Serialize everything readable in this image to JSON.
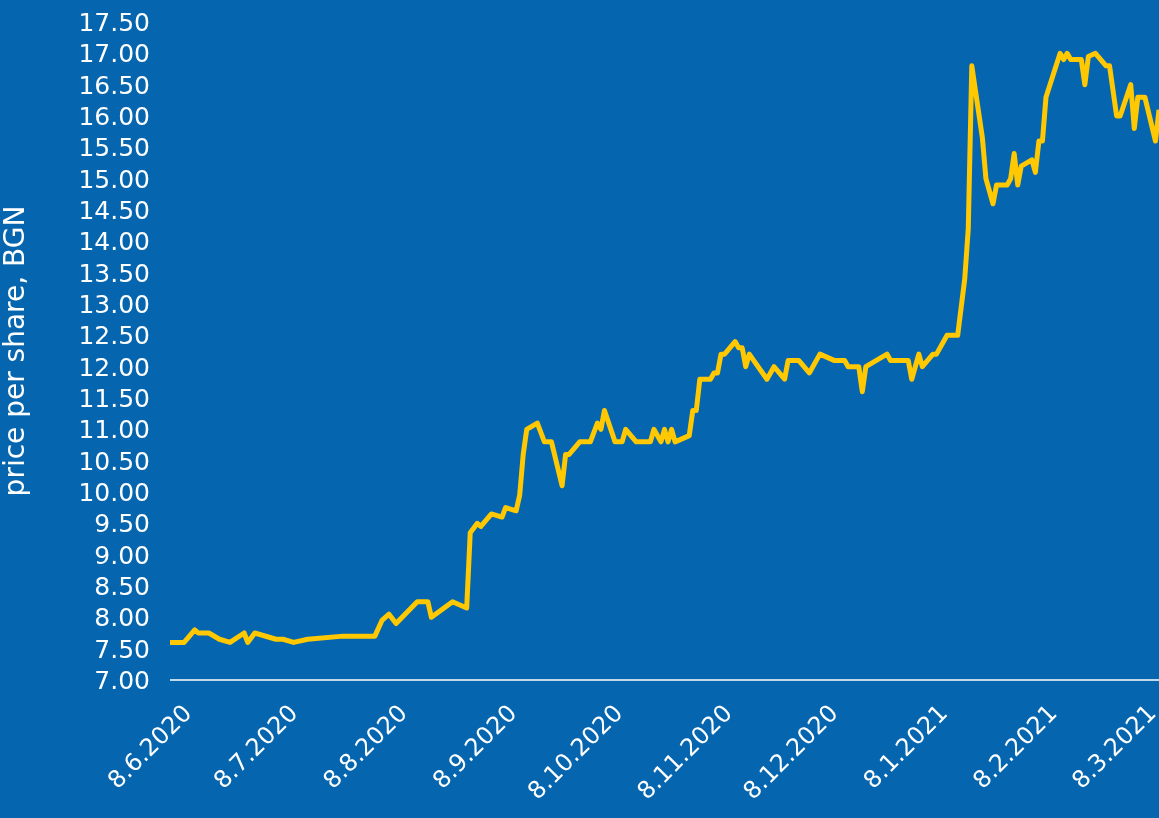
{
  "chart_data": {
    "type": "line",
    "ylabel": "price per share, BGN",
    "xlim": [
      "2020-06-05",
      "2021-03-12"
    ],
    "xticks": [
      {
        "value": "2020-06-08",
        "label": "8.6.2020"
      },
      {
        "value": "2020-07-08",
        "label": "8.7.2020"
      },
      {
        "value": "2020-08-08",
        "label": "8.8.2020"
      },
      {
        "value": "2020-09-08",
        "label": "8.9.2020"
      },
      {
        "value": "2020-10-08",
        "label": "8.10.2020"
      },
      {
        "value": "2020-11-08",
        "label": "8.11.2020"
      },
      {
        "value": "2020-12-08",
        "label": "8.12.2020"
      },
      {
        "value": "2021-01-08",
        "label": "8.1.2021"
      },
      {
        "value": "2021-02-08",
        "label": "8.2.2021"
      },
      {
        "value": "2021-03-08",
        "label": "8.3.2021"
      }
    ],
    "ylim": [
      7,
      17.5
    ],
    "yticks": [
      {
        "value": 7,
        "label": "7.00"
      },
      {
        "value": 7.5,
        "label": "7.50"
      },
      {
        "value": 8,
        "label": "8.00"
      },
      {
        "value": 8.5,
        "label": "8.50"
      },
      {
        "value": 9,
        "label": "9.00"
      },
      {
        "value": 9.5,
        "label": "9.50"
      },
      {
        "value": 10,
        "label": "10.00"
      },
      {
        "value": 10.5,
        "label": "10.50"
      },
      {
        "value": 11,
        "label": "11.00"
      },
      {
        "value": 11.5,
        "label": "11.50"
      },
      {
        "value": 12,
        "label": "12.00"
      },
      {
        "value": 12.5,
        "label": "12.50"
      },
      {
        "value": 13,
        "label": "13.00"
      },
      {
        "value": 13.5,
        "label": "13.50"
      },
      {
        "value": 14,
        "label": "14.00"
      },
      {
        "value": 14.5,
        "label": "14.50"
      },
      {
        "value": 15,
        "label": "15.00"
      },
      {
        "value": 15.5,
        "label": "15.50"
      },
      {
        "value": 16,
        "label": "16.00"
      },
      {
        "value": 16.5,
        "label": "16.50"
      },
      {
        "value": 17,
        "label": "17.00"
      },
      {
        "value": 17.5,
        "label": "17.50"
      }
    ],
    "x": [
      "2020-06-05",
      "2020-06-09",
      "2020-06-12",
      "2020-06-13",
      "2020-06-16",
      "2020-06-19",
      "2020-06-22",
      "2020-06-26",
      "2020-06-27",
      "2020-06-29",
      "2020-07-05",
      "2020-07-07",
      "2020-07-10",
      "2020-07-14",
      "2020-07-24",
      "2020-08-02",
      "2020-08-04",
      "2020-08-06",
      "2020-08-08",
      "2020-08-14",
      "2020-08-17",
      "2020-08-18",
      "2020-08-24",
      "2020-08-28",
      "2020-08-29",
      "2020-08-31",
      "2020-09-01",
      "2020-09-04",
      "2020-09-07",
      "2020-09-08",
      "2020-09-11",
      "2020-09-12",
      "2020-09-13",
      "2020-09-14",
      "2020-09-17",
      "2020-09-19",
      "2020-09-21",
      "2020-09-24",
      "2020-09-25",
      "2020-09-26",
      "2020-09-29",
      "2020-10-02",
      "2020-10-04",
      "2020-10-05",
      "2020-10-06",
      "2020-10-09",
      "2020-10-11",
      "2020-10-12",
      "2020-10-15",
      "2020-10-19",
      "2020-10-20",
      "2020-10-22",
      "2020-10-23",
      "2020-10-24",
      "2020-10-25",
      "2020-10-26",
      "2020-10-30",
      "2020-10-31",
      "2020-11-01",
      "2020-11-02",
      "2020-11-05",
      "2020-11-06",
      "2020-11-07",
      "2020-11-08",
      "2020-11-09",
      "2020-11-12",
      "2020-11-13",
      "2020-11-14",
      "2020-11-15",
      "2020-11-16",
      "2020-11-21",
      "2020-11-23",
      "2020-11-26",
      "2020-11-27",
      "2020-11-30",
      "2020-12-03",
      "2020-12-06",
      "2020-12-10",
      "2020-12-13",
      "2020-12-14",
      "2020-12-17",
      "2020-12-18",
      "2020-12-19",
      "2020-12-25",
      "2020-12-26",
      "2020-12-31",
      "2021-01-01",
      "2021-01-03",
      "2021-01-04",
      "2021-01-07",
      "2021-01-08",
      "2021-01-11",
      "2021-01-14",
      "2021-01-16",
      "2021-01-17",
      "2021-01-18",
      "2021-01-21",
      "2021-01-22",
      "2021-01-24",
      "2021-01-25",
      "2021-01-28",
      "2021-01-29",
      "2021-01-30",
      "2021-01-31",
      "2021-02-01",
      "2021-02-04",
      "2021-02-05",
      "2021-02-06",
      "2021-02-07",
      "2021-02-08",
      "2021-02-12",
      "2021-02-13",
      "2021-02-14",
      "2021-02-15",
      "2021-02-18",
      "2021-02-19",
      "2021-02-20",
      "2021-02-22",
      "2021-02-25",
      "2021-02-26",
      "2021-02-28",
      "2021-03-01",
      "2021-03-04",
      "2021-03-05",
      "2021-03-06",
      "2021-03-08",
      "2021-03-11",
      "2021-03-12"
    ],
    "series": [
      {
        "color": "#ffc800",
        "values": [
          7.6,
          7.6,
          7.8,
          7.75,
          7.75,
          7.65,
          7.6,
          7.75,
          7.6,
          7.75,
          7.65,
          7.65,
          7.6,
          7.65,
          7.7,
          7.7,
          7.95,
          8.05,
          7.9,
          8.25,
          8.25,
          8.0,
          8.25,
          8.15,
          9.35,
          9.5,
          9.45,
          9.65,
          9.6,
          9.75,
          9.7,
          9.95,
          10.6,
          11.0,
          11.1,
          10.8,
          10.8,
          10.1,
          10.6,
          10.6,
          10.8,
          10.8,
          11.1,
          11.0,
          11.3,
          10.8,
          10.8,
          11.0,
          10.8,
          10.8,
          11.0,
          10.8,
          11.0,
          10.8,
          11.0,
          10.8,
          10.9,
          11.3,
          11.3,
          11.8,
          11.8,
          11.9,
          11.9,
          12.2,
          12.2,
          12.4,
          12.3,
          12.3,
          12.0,
          12.2,
          11.8,
          12.0,
          11.8,
          12.1,
          12.1,
          11.9,
          12.2,
          12.1,
          12.1,
          12.0,
          12.0,
          11.6,
          12.0,
          12.2,
          12.1,
          12.1,
          11.8,
          12.2,
          12.0,
          12.2,
          12.2,
          12.5,
          12.5,
          13.4,
          14.2,
          16.8,
          15.65,
          15.0,
          14.6,
          14.9,
          14.9,
          15.0,
          15.4,
          14.9,
          15.2,
          15.3,
          15.1,
          15.6,
          15.6,
          16.3,
          17.0,
          16.9,
          17.0,
          16.9,
          16.9,
          16.5,
          16.95,
          17.0,
          16.8,
          16.8,
          16.0,
          16.0,
          16.5,
          15.8,
          16.3,
          16.3,
          15.6,
          16.1
        ]
      }
    ]
  }
}
